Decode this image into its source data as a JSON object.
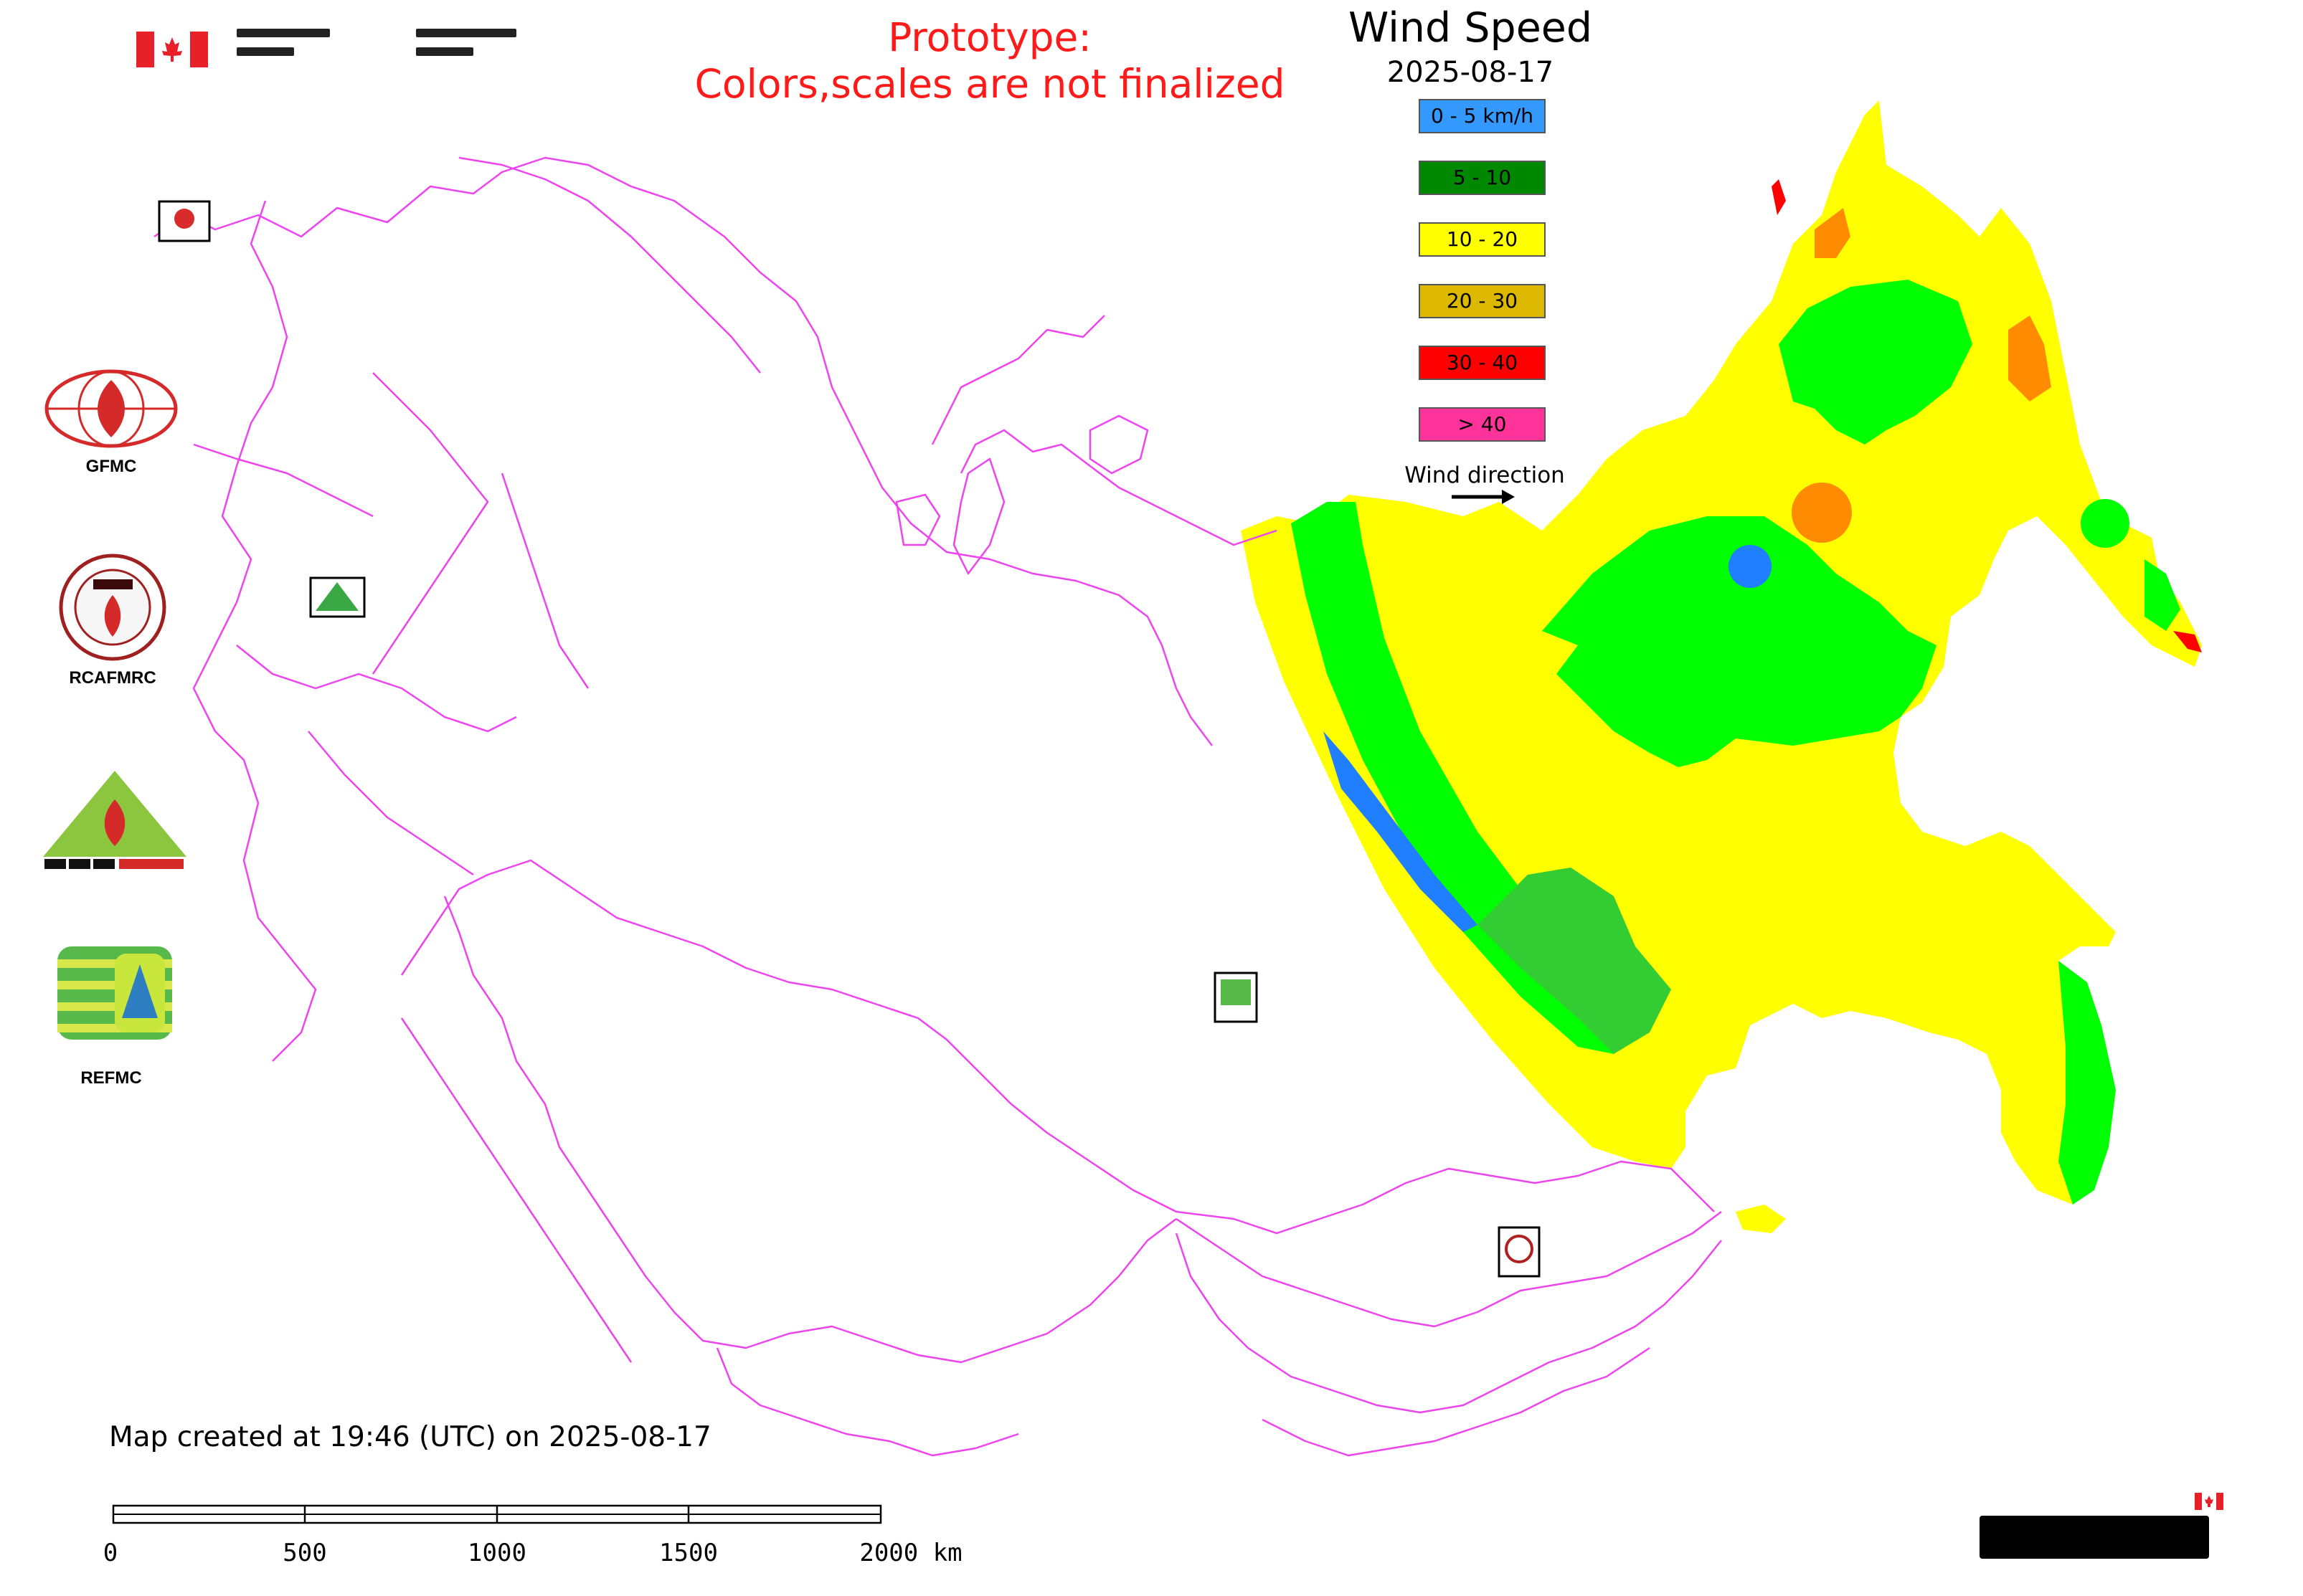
{
  "header": {
    "prototype_line1": "Prototype:",
    "prototype_line2": "Colors,scales are not finalized"
  },
  "legend": {
    "title": "Wind Speed",
    "date": "2025-08-17",
    "items": [
      {
        "label": "0 - 5 km/h",
        "color": "#3399ff"
      },
      {
        "label": "5 - 10",
        "color": "#008800"
      },
      {
        "label": "10 - 20",
        "color": "#ffff00"
      },
      {
        "label": "20 - 30",
        "color": "#ddb800"
      },
      {
        "label": "30 - 40",
        "color": "#ff0000"
      },
      {
        "label": "> 40",
        "color": "#ff3399"
      }
    ],
    "wind_direction_label": "Wind direction"
  },
  "map": {
    "boundary_color": "#ee44ee",
    "region_colors": {
      "yellow": "#ffff00",
      "green": "#00ff00",
      "dark_green": "#33cc33",
      "blue": "#1f7fff",
      "orange": "#ff8c00",
      "red": "#ff0000"
    }
  },
  "side_logos": [
    {
      "label": "GFMC",
      "icon": "gfmc-logo-icon"
    },
    {
      "label": "RCAFMRC",
      "icon": "rcafmrc-logo-icon"
    },
    {
      "label": "",
      "icon": "reefmc-logo-icon"
    },
    {
      "label": "REFMC",
      "icon": "refmc-logo-icon"
    }
  ],
  "footer": {
    "map_created": "Map created at 19:46 (UTC) on 2025-08-17",
    "scale_labels": [
      "0",
      "500",
      "1000",
      "1500",
      "2000 km"
    ]
  }
}
